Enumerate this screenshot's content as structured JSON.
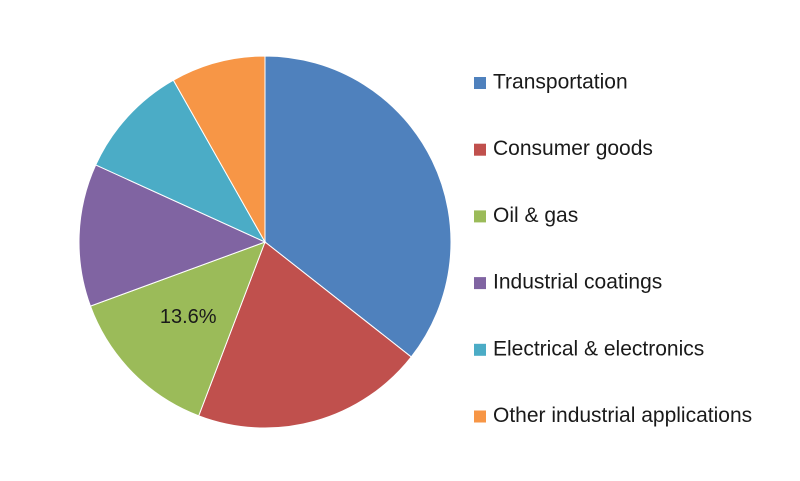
{
  "chart_data": {
    "type": "pie",
    "title": "",
    "categories": [
      "Transportation",
      "Consumer goods",
      "Oil & gas",
      "Industrial coatings",
      "Electrical & electronics",
      "Other industrial applications"
    ],
    "values": [
      35.6,
      20.2,
      13.6,
      12.4,
      10.0,
      8.2
    ],
    "colors": [
      "#4F81BD",
      "#C0504D",
      "#9BBB59",
      "#8064A2",
      "#4BACC6",
      "#F79646"
    ],
    "data_labels": [
      null,
      null,
      "13.6%",
      null,
      null,
      null
    ],
    "start_angle_deg": 0,
    "direction": "clockwise",
    "legend_position": "right"
  }
}
